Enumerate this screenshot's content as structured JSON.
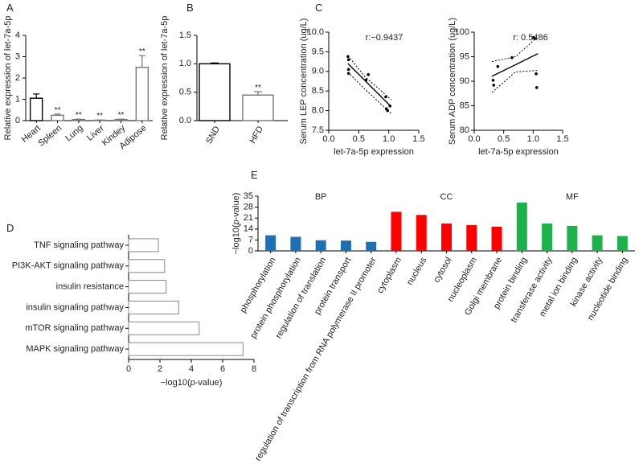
{
  "figure": {
    "panel_letters": [
      "A",
      "B",
      "C",
      "D",
      "E"
    ]
  },
  "chart_data": [
    {
      "panel": "A",
      "type": "bar",
      "categories": [
        "Heart",
        "Spleen",
        "Lung",
        "Liver",
        "Kindey",
        "Adipose"
      ],
      "values": [
        1.05,
        0.25,
        0.05,
        0.02,
        0.05,
        2.5
      ],
      "errors": [
        0.2,
        0.06,
        0.02,
        0.01,
        0.02,
        0.55
      ],
      "annotations": [
        "",
        "**",
        "**",
        "**",
        "**",
        "**"
      ],
      "ylabel": "Relative expression of let-7a-5p",
      "ylim": [
        0,
        4
      ],
      "yticks": [
        "0",
        "1",
        "2",
        "3",
        "4"
      ],
      "colors": [
        "#000000",
        "#777777",
        "#777777",
        "#777777",
        "#777777",
        "#777777"
      ]
    },
    {
      "panel": "B",
      "type": "bar",
      "categories": [
        "SND",
        "HFD"
      ],
      "values": [
        1.0,
        0.45
      ],
      "errors": [
        0.015,
        0.06
      ],
      "annotations": [
        "",
        "**"
      ],
      "ylabel": "Relative expression of let-7a-5p",
      "ylim": [
        0,
        1.5
      ],
      "yticks": [
        "0.0",
        "0.5",
        "1.0",
        "1.5"
      ],
      "colors": [
        "#000000",
        "#777777"
      ]
    },
    {
      "panel": "C1",
      "type": "scatter",
      "points": [
        [
          0.32,
          9.38
        ],
        [
          0.33,
          9.3
        ],
        [
          0.33,
          9.05
        ],
        [
          0.33,
          8.95
        ],
        [
          0.62,
          8.78
        ],
        [
          0.66,
          8.92
        ],
        [
          0.95,
          8.35
        ],
        [
          0.96,
          8.05
        ],
        [
          0.98,
          8.0
        ],
        [
          1.02,
          8.12
        ]
      ],
      "fit_line": [
        [
          0.32,
          9.2
        ],
        [
          1.04,
          8.1
        ]
      ],
      "ci_upper": [
        [
          0.32,
          9.4
        ],
        [
          0.6,
          8.87
        ],
        [
          1.04,
          8.28
        ]
      ],
      "ci_lower": [
        [
          0.32,
          8.98
        ],
        [
          0.6,
          8.55
        ],
        [
          1.04,
          7.93
        ]
      ],
      "annotation": "r:−0.9437",
      "xlabel": "let-7a-5p expression",
      "ylabel": "Serum LEP concentration (ug/L)",
      "xlim": [
        0.0,
        1.5
      ],
      "ylim": [
        7.5,
        10.0
      ],
      "xticks": [
        "0.0",
        "0.5",
        "1.0",
        "1.5"
      ],
      "yticks": [
        "7.5",
        "8.0",
        "8.5",
        "9.0",
        "9.5",
        "10.0"
      ]
    },
    {
      "panel": "C2",
      "type": "scatter",
      "points": [
        [
          0.32,
          90.2
        ],
        [
          0.33,
          89.2
        ],
        [
          0.4,
          93.0
        ],
        [
          0.64,
          94.8
        ],
        [
          1.0,
          98.9
        ],
        [
          1.03,
          98.7
        ],
        [
          1.05,
          91.5
        ],
        [
          1.06,
          88.7
        ]
      ],
      "fit_line": [
        [
          0.3,
          91.0
        ],
        [
          1.08,
          95.6
        ]
      ],
      "ci_upper": [
        [
          0.3,
          94.0
        ],
        [
          0.7,
          95.0
        ],
        [
          1.08,
          99.1
        ]
      ],
      "ci_lower": [
        [
          0.3,
          87.7
        ],
        [
          0.7,
          91.9
        ],
        [
          1.08,
          92.2
        ]
      ],
      "annotation": "r: 0.5486",
      "xlabel": "let-7a-5p expression",
      "ylabel": "Serum ADP concentration (ug/L)",
      "xlim": [
        0.0,
        1.5
      ],
      "ylim": [
        80,
        100
      ],
      "xticks": [
        "0.0",
        "0.5",
        "1.0",
        "1.5"
      ],
      "yticks": [
        "80",
        "85",
        "90",
        "95",
        "100"
      ]
    },
    {
      "panel": "D",
      "type": "bar",
      "orientation": "horizontal",
      "categories": [
        "TNF signaling pathway",
        "PI3K-AKT signaling pathway",
        "insulin resistance",
        "insulin signaling pathway",
        "mTOR signaling pathway",
        "MAPK signaling pathway"
      ],
      "values": [
        1.9,
        2.3,
        2.4,
        3.2,
        4.5,
        7.3
      ],
      "xlabel": "−log10(p-value)",
      "xlim": [
        0,
        8
      ],
      "xticks": [
        "0",
        "2",
        "4",
        "6",
        "8"
      ]
    },
    {
      "panel": "E",
      "type": "bar",
      "categories": [
        "phosphorylation",
        "protein phosphorylation",
        "regulation of translation",
        "protein transport",
        "regulation of transcription from RNA polymerase II promoter",
        "cytoplasm",
        "nucleus",
        "cytosol",
        "nucleoplasm",
        "Golgi membrane",
        "protein binding",
        "transferase activity",
        "metal ion binding",
        "kinase activity",
        "nucleotide binding"
      ],
      "values": [
        10,
        9,
        6.8,
        6.6,
        5.8,
        25,
        23,
        17.5,
        16.5,
        15.5,
        31,
        17.5,
        16,
        10,
        9.5
      ],
      "groups": [
        {
          "name": "BP",
          "color": "#1f6fb5",
          "count": 5
        },
        {
          "name": "CC",
          "color": "#ff0000",
          "count": 5
        },
        {
          "name": "MF",
          "color": "#1bb24b",
          "count": 5
        }
      ],
      "ylabel": "−log10(p-value)",
      "ylim": [
        0,
        35
      ],
      "yticks": [
        "0",
        "7",
        "14",
        "21",
        "28",
        "35"
      ]
    }
  ]
}
